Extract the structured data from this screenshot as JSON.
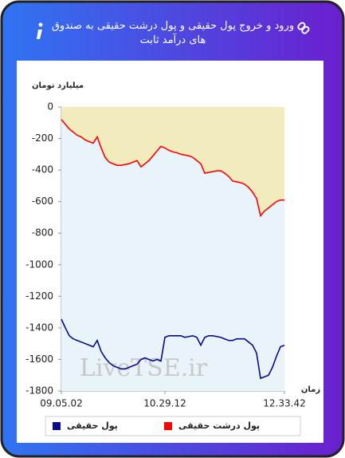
{
  "header": {
    "title": "ورود و خروج پول حقیقی و پول درشت حقیقی به صندوق های درآمد ثابت"
  },
  "chart_data": {
    "type": "line",
    "ylabel": "میلیارد تومان",
    "xlabel": "زمان",
    "annotation": "LiveTSE.ir",
    "categories": [
      "09.05.02",
      null,
      null,
      null,
      null,
      null,
      null,
      null,
      null,
      null,
      null,
      null,
      null,
      null,
      null,
      null,
      null,
      null,
      null,
      null,
      null,
      null,
      null,
      null,
      null,
      null,
      "10.29.12",
      null,
      null,
      null,
      null,
      null,
      null,
      null,
      null,
      null,
      null,
      null,
      null,
      null,
      null,
      null,
      null,
      null,
      null,
      null,
      null,
      null,
      null,
      null,
      null,
      null,
      null,
      null,
      null,
      null,
      "12.33.42"
    ],
    "series": [
      {
        "name": "پول حقیقی",
        "color": "#0a0a8c",
        "values": [
          -1345,
          -1400,
          -1450,
          -1470,
          -1480,
          -1490,
          -1500,
          -1510,
          -1520,
          -1480,
          -1550,
          -1590,
          -1620,
          -1640,
          -1650,
          -1660,
          -1660,
          -1650,
          -1640,
          -1630,
          -1600,
          -1590,
          -1600,
          -1610,
          -1600,
          -1610,
          -1460,
          -1450,
          -1450,
          -1450,
          -1450,
          -1460,
          -1455,
          -1450,
          -1460,
          -1510,
          -1460,
          -1450,
          -1450,
          -1455,
          -1460,
          -1470,
          -1480,
          -1480,
          -1470,
          -1470,
          -1470,
          -1490,
          -1510,
          -1560,
          -1720,
          -1710,
          -1700,
          -1650,
          -1580,
          -1520,
          -1510
        ]
      },
      {
        "name": "پول درشت حقیقی",
        "color": "#ff0000",
        "values": [
          -80,
          -110,
          -140,
          -160,
          -180,
          -190,
          -210,
          -220,
          -230,
          -190,
          -260,
          -320,
          -350,
          -360,
          -370,
          -370,
          -365,
          -360,
          -350,
          -340,
          -380,
          -360,
          -340,
          -310,
          -280,
          -250,
          -260,
          -275,
          -285,
          -290,
          -300,
          -305,
          -310,
          -320,
          -340,
          -360,
          -420,
          -415,
          -410,
          -405,
          -405,
          -420,
          -440,
          -470,
          -475,
          -480,
          -490,
          -510,
          -540,
          -580,
          -690,
          -660,
          -640,
          -620,
          -600,
          -590,
          -590
        ]
      }
    ],
    "ylim": [
      -1800,
      0
    ],
    "yticks": [
      0,
      -200,
      -400,
      -600,
      -800,
      -1000,
      -1200,
      -1400,
      -1600,
      -1800
    ],
    "fill_above": "#f2ebbd",
    "fill_below": "#e9f4fa"
  }
}
